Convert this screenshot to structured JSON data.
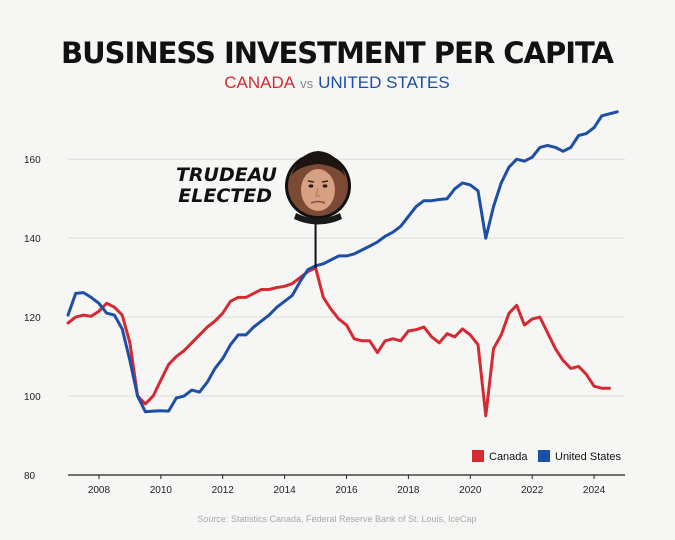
{
  "chart_data": {
    "type": "line",
    "title": "BUSINESS INVESTMENT PER CAPITA",
    "subtitle": {
      "left": "CANADA",
      "middle": "vs",
      "right": "UNITED STATES"
    },
    "xlabel": "",
    "ylabel": "",
    "xlim": [
      2007.0,
      2025.0
    ],
    "ylim": [
      80,
      175
    ],
    "x_ticks": [
      2008,
      2010,
      2012,
      2014,
      2016,
      2018,
      2020,
      2022,
      2024
    ],
    "y_ticks": [
      80,
      100,
      120,
      140,
      160
    ],
    "grid": true,
    "legend_position": "bottom-right",
    "series": [
      {
        "name": "Canada",
        "color": "#d62a32",
        "x": [
          2007.0,
          2007.25,
          2007.5,
          2007.75,
          2008.0,
          2008.25,
          2008.5,
          2008.75,
          2009.0,
          2009.25,
          2009.5,
          2009.75,
          2010.0,
          2010.25,
          2010.5,
          2010.75,
          2011.0,
          2011.25,
          2011.5,
          2011.75,
          2012.0,
          2012.25,
          2012.5,
          2012.75,
          2013.0,
          2013.25,
          2013.5,
          2013.75,
          2014.0,
          2014.25,
          2014.5,
          2014.75,
          2015.0,
          2015.25,
          2015.5,
          2015.75,
          2016.0,
          2016.25,
          2016.5,
          2016.75,
          2017.0,
          2017.25,
          2017.5,
          2017.75,
          2018.0,
          2018.25,
          2018.5,
          2018.75,
          2019.0,
          2019.25,
          2019.5,
          2019.75,
          2020.0,
          2020.25,
          2020.5,
          2020.75,
          2021.0,
          2021.25,
          2021.5,
          2021.75,
          2022.0,
          2022.25,
          2022.5,
          2022.75,
          2023.0,
          2023.25,
          2023.5,
          2023.75,
          2024.0,
          2024.25,
          2024.5
        ],
        "values": [
          118.5,
          120.0,
          120.5,
          120.2,
          121.5,
          123.5,
          122.5,
          120.5,
          113.5,
          100.0,
          98.0,
          100.0,
          104.0,
          108.0,
          110.0,
          111.5,
          113.5,
          115.5,
          117.5,
          119.0,
          121.0,
          124.0,
          125.0,
          125.0,
          126.0,
          127.0,
          127.0,
          127.5,
          127.8,
          128.5,
          130.0,
          131.5,
          132.5,
          125.0,
          122.0,
          119.5,
          118.0,
          114.5,
          114.0,
          114.0,
          111.0,
          114.0,
          114.5,
          114.0,
          116.5,
          116.8,
          117.5,
          115.0,
          113.5,
          115.8,
          115.0,
          117.0,
          115.5,
          113.0,
          95.0,
          112.0,
          115.5,
          121.0,
          123.0,
          118.0,
          119.5,
          120.0,
          116.0,
          112.0,
          109.0,
          107.0,
          107.5,
          105.5,
          102.5,
          102.0,
          102.0
        ]
      },
      {
        "name": "United States",
        "color": "#1d4fa7",
        "x": [
          2007.0,
          2007.25,
          2007.5,
          2007.75,
          2008.0,
          2008.25,
          2008.5,
          2008.75,
          2009.0,
          2009.25,
          2009.5,
          2009.75,
          2010.0,
          2010.25,
          2010.5,
          2010.75,
          2011.0,
          2011.25,
          2011.5,
          2011.75,
          2012.0,
          2012.25,
          2012.5,
          2012.75,
          2013.0,
          2013.25,
          2013.5,
          2013.75,
          2014.0,
          2014.25,
          2014.5,
          2014.75,
          2015.0,
          2015.25,
          2015.5,
          2015.75,
          2016.0,
          2016.25,
          2016.5,
          2016.75,
          2017.0,
          2017.25,
          2017.5,
          2017.75,
          2018.0,
          2018.25,
          2018.5,
          2018.75,
          2019.0,
          2019.25,
          2019.5,
          2019.75,
          2020.0,
          2020.25,
          2020.5,
          2020.75,
          2021.0,
          2021.25,
          2021.5,
          2021.75,
          2022.0,
          2022.25,
          2022.5,
          2022.75,
          2023.0,
          2023.25,
          2023.5,
          2023.75,
          2024.0,
          2024.25,
          2024.5,
          2024.75
        ],
        "values": [
          120.5,
          126.0,
          126.2,
          125.0,
          123.5,
          121.0,
          120.5,
          117.0,
          109.0,
          100.0,
          96.0,
          96.2,
          96.3,
          96.2,
          99.5,
          100.0,
          101.5,
          101.0,
          103.5,
          107.0,
          109.5,
          113.0,
          115.5,
          115.5,
          117.5,
          119.0,
          120.5,
          122.5,
          124.0,
          125.5,
          129.0,
          132.0,
          133.0,
          133.5,
          134.5,
          135.5,
          135.5,
          136.0,
          137.0,
          138.0,
          139.0,
          140.5,
          141.5,
          143.0,
          145.5,
          148.0,
          149.5,
          149.5,
          149.8,
          150.0,
          152.5,
          154.0,
          153.5,
          152.0,
          140.0,
          148.0,
          154.0,
          158.0,
          160.0,
          159.5,
          160.5,
          163.0,
          163.5,
          163.0,
          162.0,
          163.0,
          166.0,
          166.5,
          168.0,
          171.0,
          171.5,
          172.0
        ]
      }
    ],
    "annotation": {
      "lines": [
        "TRUDEAU",
        "ELECTED"
      ],
      "x": 2015.0
    }
  },
  "source_text": "Source: Statistics Canada, Federal Reserve Bank of St. Louis, IceCap"
}
